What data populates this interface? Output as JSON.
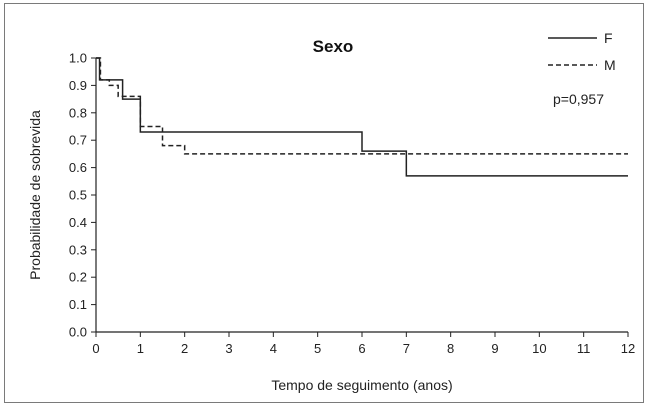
{
  "chart_data": {
    "type": "line",
    "step": true,
    "title": "Sexo",
    "xlabel": "Tempo de seguimento (anos)",
    "ylabel": "Probabilidade de sobrevida",
    "xlim": [
      0,
      12
    ],
    "ylim": [
      0,
      1.0
    ],
    "x_ticks": [
      "0",
      "1",
      "2",
      "3",
      "4",
      "5",
      "6",
      "7",
      "8",
      "9",
      "10",
      "11",
      "12"
    ],
    "y_ticks": [
      "0.0",
      "0.1",
      "0.2",
      "0.3",
      "0.4",
      "0.5",
      "0.6",
      "0.7",
      "0.8",
      "0.9",
      "1.0"
    ],
    "grid": false,
    "legend_position": "top-right",
    "annotation": "p=0,957",
    "series": [
      {
        "name": "F",
        "style": "solid",
        "color": "#222222",
        "x": [
          0,
          0.08,
          0.6,
          1.0,
          1.5,
          6.0,
          7.0,
          12.0
        ],
        "y": [
          1.0,
          0.92,
          0.85,
          0.73,
          0.73,
          0.66,
          0.57,
          0.57
        ]
      },
      {
        "name": "M",
        "style": "dashed",
        "color": "#222222",
        "x": [
          0,
          0.1,
          0.3,
          0.5,
          1.0,
          1.5,
          2.0,
          12.0
        ],
        "y": [
          1.0,
          0.92,
          0.9,
          0.86,
          0.75,
          0.68,
          0.65,
          0.65
        ]
      }
    ]
  }
}
